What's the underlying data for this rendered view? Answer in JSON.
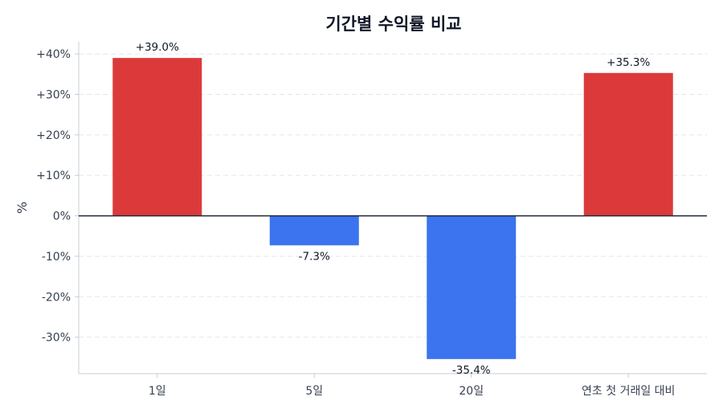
{
  "chart_data": {
    "type": "bar",
    "title": "기간별 수익률 비교",
    "xlabel": "",
    "ylabel": "%",
    "categories": [
      "1일",
      "5일",
      "20일",
      "연초 첫 거래일 대비"
    ],
    "values": [
      39.0,
      -7.3,
      -35.4,
      35.3
    ],
    "data_labels": [
      "+39.0%",
      "-7.3%",
      "-35.4%",
      "+35.3%"
    ],
    "ylim": [
      -39,
      43
    ],
    "yticks": [
      40,
      30,
      20,
      10,
      0,
      -10,
      -20,
      -30
    ],
    "ytick_labels": [
      "+40%",
      "+30%",
      "+20%",
      "+10%",
      "0%",
      "-10%",
      "-20%",
      "-30%"
    ],
    "grid": true,
    "colors": {
      "positive": "#dc3a3a",
      "negative": "#3b74ee",
      "zero_line": "#1f2937",
      "grid": "#e5e7eb",
      "axis": "#c8ccd2"
    }
  }
}
